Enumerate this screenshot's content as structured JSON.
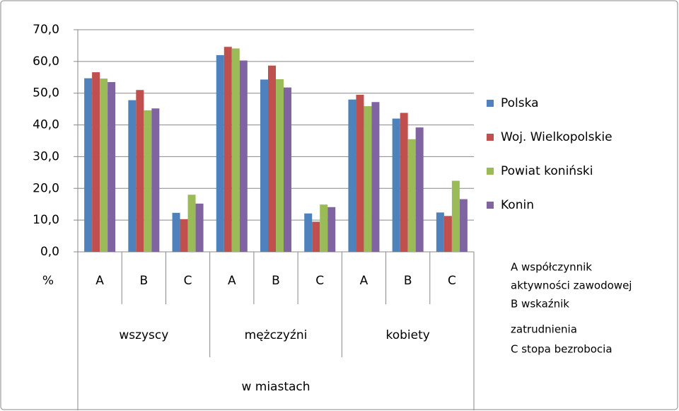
{
  "chart_data": {
    "type": "bar",
    "categories": [
      "A",
      "B",
      "C",
      "A",
      "B",
      "C",
      "A",
      "B",
      "C"
    ],
    "groups": [
      "wszyscy",
      "mężczyźni",
      "kobiety"
    ],
    "group_title": "w miastach",
    "y_unit_label": "%",
    "series": [
      {
        "name": "Polska",
        "color": "#4f81bd",
        "values": [
          54.7,
          47.8,
          12.3,
          62.0,
          54.3,
          12.1,
          48.0,
          42.0,
          12.4
        ]
      },
      {
        "name": "Woj. Wielkopolskie",
        "color": "#c0504d",
        "values": [
          56.6,
          51.0,
          10.3,
          64.6,
          58.7,
          9.5,
          49.5,
          43.8,
          11.3
        ]
      },
      {
        "name": "Powiat koniński",
        "color": "#9bbb59",
        "values": [
          54.6,
          44.6,
          18.0,
          64.1,
          54.4,
          14.9,
          45.9,
          35.5,
          22.4
        ]
      },
      {
        "name": "Konin",
        "color": "#8064a2",
        "values": [
          53.5,
          45.2,
          15.2,
          60.3,
          51.8,
          14.1,
          47.2,
          39.2,
          16.6
        ]
      }
    ],
    "ylim": [
      0,
      70
    ],
    "yticks": [
      {
        "value": 0,
        "label": "0,0"
      },
      {
        "value": 10,
        "label": "10,0"
      },
      {
        "value": 20,
        "label": "20,0"
      },
      {
        "value": 30,
        "label": "30,0"
      },
      {
        "value": 40,
        "label": "40,0"
      },
      {
        "value": 50,
        "label": "50,0"
      },
      {
        "value": 60,
        "label": "60,0"
      },
      {
        "value": 70,
        "label": "70,0"
      }
    ],
    "grid": true,
    "legend": "right",
    "notes": [
      "A współczynnik",
      "aktywności zawodowej",
      "B wskaźnik",
      "zatrudnienia",
      "C stopa bezrobocia"
    ]
  }
}
